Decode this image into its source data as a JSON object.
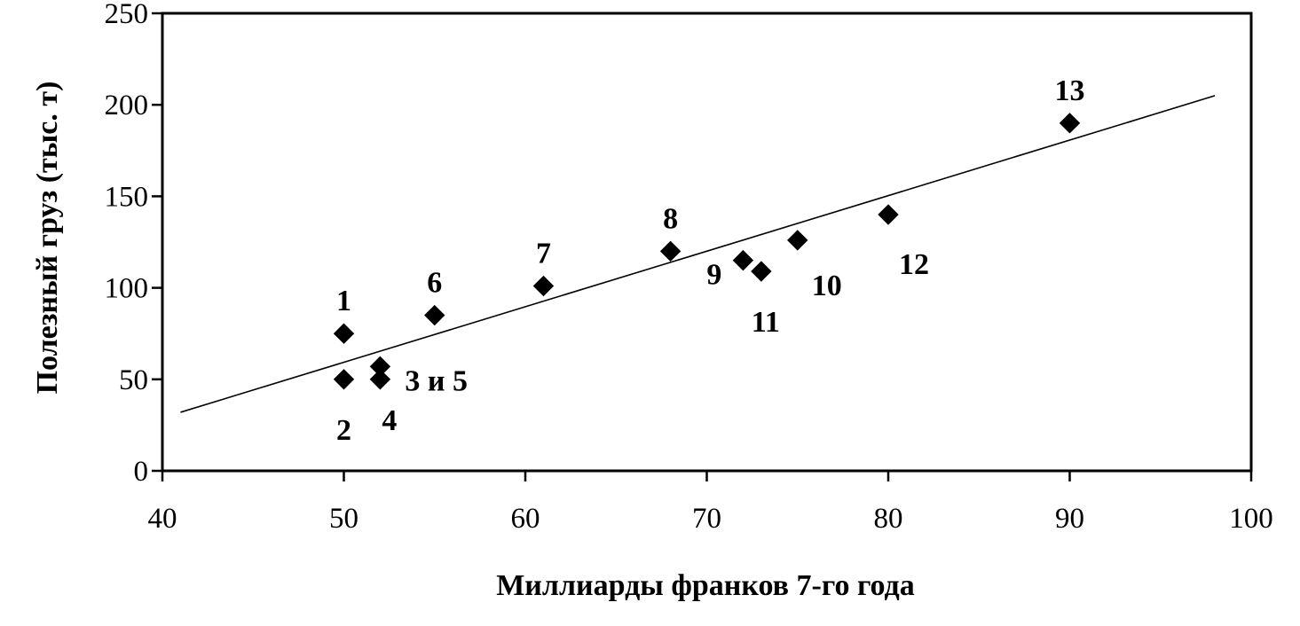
{
  "chart_data": {
    "type": "scatter",
    "title": "",
    "xlabel": "Миллиарды франков 7-го года",
    "ylabel": "Полезный груз (тыс. т)",
    "xlim": [
      40,
      100
    ],
    "ylim": [
      0,
      250
    ],
    "x_ticks": [
      "40",
      "50",
      "60",
      "70",
      "80",
      "90",
      "100"
    ],
    "y_ticks": [
      "0",
      "50",
      "100",
      "150",
      "200",
      "250"
    ],
    "grid": false,
    "legend": "none",
    "marker": "diamond",
    "colors": {
      "marker": "#000000",
      "line": "#000000",
      "axes": "#000000"
    },
    "points": [
      {
        "x": 50,
        "y": 75
      },
      {
        "x": 50,
        "y": 50
      },
      {
        "x": 52,
        "y": 57
      },
      {
        "x": 52,
        "y": 50
      },
      {
        "x": 55,
        "y": 85
      },
      {
        "x": 61,
        "y": 101
      },
      {
        "x": 68,
        "y": 120
      },
      {
        "x": 72,
        "y": 115
      },
      {
        "x": 73,
        "y": 109
      },
      {
        "x": 75,
        "y": 126
      },
      {
        "x": 80,
        "y": 140
      },
      {
        "x": 90,
        "y": 190
      }
    ],
    "labels": [
      {
        "text": "1",
        "x": 50,
        "y": 75,
        "pos": "above"
      },
      {
        "text": "2",
        "x": 50,
        "y": 50,
        "pos": "below"
      },
      {
        "text": "3 и 5",
        "x": 52,
        "y": 53,
        "pos": "right"
      },
      {
        "text": "4",
        "x": 52,
        "y": 50,
        "pos": "below-right"
      },
      {
        "text": "6",
        "x": 55,
        "y": 85,
        "pos": "above"
      },
      {
        "text": "7",
        "x": 61,
        "y": 101,
        "pos": "above"
      },
      {
        "text": "8",
        "x": 68,
        "y": 120,
        "pos": "above"
      },
      {
        "text": "9",
        "x": 72,
        "y": 115,
        "pos": "below-left"
      },
      {
        "text": "10",
        "x": 75,
        "y": 126,
        "pos": "below-right"
      },
      {
        "text": "11",
        "x": 73,
        "y": 109,
        "pos": "below"
      },
      {
        "text": "12",
        "x": 80,
        "y": 140,
        "pos": "below-right"
      },
      {
        "text": "13",
        "x": 90,
        "y": 190,
        "pos": "above"
      }
    ],
    "trendline": {
      "x": [
        41,
        98
      ],
      "y": [
        32,
        205
      ]
    }
  }
}
